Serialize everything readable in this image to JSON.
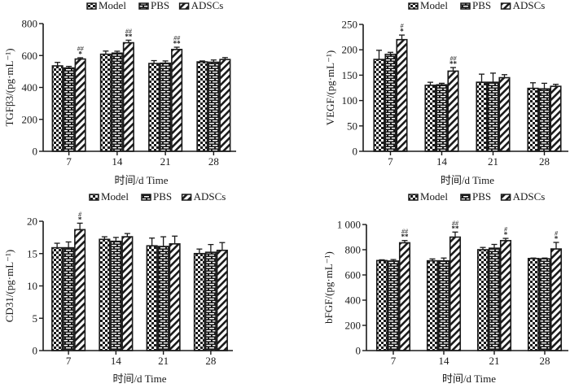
{
  "figure": {
    "legend_labels": [
      "Model",
      "PBS",
      "ADSCs"
    ],
    "pattern_colors": {
      "ink": "#1a1a1a",
      "paper": "#ffffff"
    }
  },
  "chart_data": [
    {
      "id": "tgfb3",
      "type": "bar",
      "title": "",
      "xlabel": "时间/d Time",
      "ylabel": "TGFβ3/(pg·mL⁻¹)",
      "categories": [
        "7",
        "14",
        "21",
        "28"
      ],
      "ylim": [
        0,
        800
      ],
      "yticks": [
        0,
        200,
        400,
        600,
        800
      ],
      "ytick_labels": [
        "0",
        "200",
        "400",
        "600",
        "800"
      ],
      "legend": {
        "position": "top",
        "entries": [
          "Model",
          "PBS",
          "ADSCs"
        ]
      },
      "series": [
        {
          "name": "Model",
          "values": [
            535,
            608,
            550,
            560
          ],
          "errors": [
            22,
            20,
            18,
            6
          ]
        },
        {
          "name": "PBS",
          "values": [
            522,
            615,
            552,
            558
          ],
          "errors": [
            10,
            12,
            14,
            14
          ]
        },
        {
          "name": "ADSCs",
          "values": [
            578,
            680,
            638,
            575
          ],
          "errors": [
            8,
            16,
            14,
            12
          ]
        }
      ],
      "annotations": [
        {
          "category": "7",
          "series": "ADSCs",
          "stars": "*",
          "hashes": "##"
        },
        {
          "category": "14",
          "series": "ADSCs",
          "stars": "**",
          "hashes": "##"
        },
        {
          "category": "21",
          "series": "ADSCs",
          "stars": "**",
          "hashes": "##"
        }
      ]
    },
    {
      "id": "vegf",
      "type": "bar",
      "title": "",
      "xlabel": "时间/d Time",
      "ylabel": "VEGF/(pg·mL⁻¹)",
      "categories": [
        "7",
        "14",
        "21",
        "28"
      ],
      "ylim": [
        0,
        250
      ],
      "yticks": [
        0,
        50,
        100,
        150,
        200,
        250
      ],
      "ytick_labels": [
        "0",
        "50",
        "100",
        "150",
        "200",
        "250"
      ],
      "legend": {
        "position": "top-right",
        "entries": [
          "Model",
          "PBS",
          "ADSCs"
        ]
      },
      "series": [
        {
          "name": "Model",
          "values": [
            181,
            130,
            136,
            124
          ],
          "errors": [
            18,
            6,
            16,
            11
          ]
        },
        {
          "name": "PBS",
          "values": [
            191,
            131,
            136,
            123
          ],
          "errors": [
            4,
            3,
            18,
            11
          ]
        },
        {
          "name": "ADSCs",
          "values": [
            220,
            158,
            145,
            128
          ],
          "errors": [
            9,
            7,
            6,
            4
          ]
        }
      ],
      "annotations": [
        {
          "category": "7",
          "series": "ADSCs",
          "stars": "*",
          "hashes": "#"
        },
        {
          "category": "14",
          "series": "ADSCs",
          "stars": "**",
          "hashes": "##"
        }
      ]
    },
    {
      "id": "cd31",
      "type": "bar",
      "title": "",
      "xlabel": "时间/d Time",
      "ylabel": "CD31/(pg·mL⁻¹)",
      "categories": [
        "7",
        "14",
        "21",
        "28"
      ],
      "ylim": [
        0,
        20
      ],
      "yticks": [
        0,
        5,
        10,
        15,
        20
      ],
      "ytick_labels": [
        "0",
        "5",
        "10",
        "15",
        "20"
      ],
      "legend": {
        "position": "top",
        "entries": [
          "Model",
          "PBS",
          "ADSCs"
        ]
      },
      "series": [
        {
          "name": "Model",
          "values": [
            15.9,
            17.2,
            16.2,
            15.0
          ],
          "errors": [
            0.7,
            0.4,
            1.2,
            0.7
          ]
        },
        {
          "name": "PBS",
          "values": [
            15.9,
            16.9,
            16.1,
            15.2
          ],
          "errors": [
            0.9,
            0.6,
            1.5,
            1.2
          ]
        },
        {
          "name": "ADSCs",
          "values": [
            18.7,
            17.6,
            16.5,
            15.5
          ],
          "errors": [
            1.0,
            0.5,
            1.2,
            1.2
          ]
        }
      ],
      "annotations": [
        {
          "category": "7",
          "series": "ADSCs",
          "stars": "*",
          "hashes": "#"
        }
      ]
    },
    {
      "id": "bfgf",
      "type": "bar",
      "title": "",
      "xlabel": "时间/d Time",
      "ylabel": "bFGF/(pg·mL⁻¹)",
      "categories": [
        "7",
        "14",
        "21",
        "28"
      ],
      "ylim": [
        0,
        1000
      ],
      "yticks": [
        0,
        200,
        400,
        600,
        800,
        1000
      ],
      "ytick_labels": [
        "0",
        "200",
        "400",
        "600",
        "800",
        "1 000"
      ],
      "legend": {
        "position": "top-right",
        "entries": [
          "Model",
          "PBS",
          "ADSCs"
        ]
      },
      "series": [
        {
          "name": "Model",
          "values": [
            714,
            712,
            800,
            730
          ],
          "errors": [
            6,
            15,
            18,
            4
          ]
        },
        {
          "name": "PBS",
          "values": [
            710,
            712,
            812,
            728
          ],
          "errors": [
            12,
            22,
            30,
            6
          ]
        },
        {
          "name": "ADSCs",
          "values": [
            855,
            900,
            872,
            806
          ],
          "errors": [
            18,
            40,
            18,
            52
          ]
        }
      ],
      "annotations": [
        {
          "category": "7",
          "series": "ADSCs",
          "stars": "**",
          "hashes": "##"
        },
        {
          "category": "14",
          "series": "ADSCs",
          "stars": "**",
          "hashes": "##"
        },
        {
          "category": "21",
          "series": "ADSCs",
          "stars": "*",
          "hashes": "#"
        },
        {
          "category": "28",
          "series": "ADSCs",
          "stars": "*",
          "hashes": "#"
        }
      ]
    }
  ]
}
